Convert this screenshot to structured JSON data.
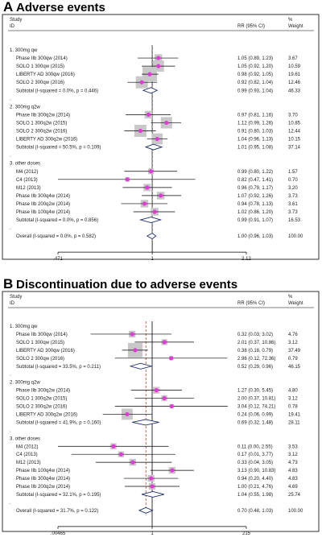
{
  "chart_data": [
    {
      "type": "forest",
      "panel_letter": "A",
      "title": "Adverse events",
      "col_study": "Study",
      "col_id": "ID",
      "col_rr": "RR (95% CI)",
      "col_pct": "%",
      "col_weight": "Weight",
      "x_ticks": [
        0.471,
        1,
        2.12
      ],
      "x_tick_labels": [
        ".471",
        "1",
        "2.12"
      ],
      "x_range": [
        0.471,
        2.12
      ],
      "log_scale": true,
      "overall_rr": 1.0,
      "rows": [
        {
          "kind": "group",
          "label": "1. 300mg qw"
        },
        {
          "kind": "study",
          "label": "Phase IIb 300qw (2014)",
          "rr": 1.05,
          "lo": 0.89,
          "hi": 1.23,
          "rr_text": "1.05 (0.89, 1.23)",
          "weight": 3.67,
          "weight_text": "3.67"
        },
        {
          "kind": "study",
          "label": "SOLO 1 300qw (2015)",
          "rr": 1.05,
          "lo": 0.92,
          "hi": 1.2,
          "rr_text": "1.05 (0.92, 1.20)",
          "weight": 10.59,
          "weight_text": "10.59"
        },
        {
          "kind": "study",
          "label": "LIBERTY AD 300qw (2016)",
          "rr": 0.98,
          "lo": 0.92,
          "hi": 1.05,
          "rr_text": "0.98 (0.92, 1.05)",
          "weight": 19.61,
          "weight_text": "19.61"
        },
        {
          "kind": "study",
          "label": "SOLO 2 300qw (2016)",
          "rr": 0.92,
          "lo": 0.82,
          "hi": 1.04,
          "rr_text": "0.92 (0.82, 1.04)",
          "weight": 12.46,
          "weight_text": "12.46"
        },
        {
          "kind": "subtotal",
          "label": "Subtotal  (I-squared = 0.0%, p = 0.446)",
          "rr": 0.99,
          "lo": 0.93,
          "hi": 1.04,
          "rr_text": "0.99 (0.93, 1.04)",
          "weight_text": "46.33"
        },
        {
          "kind": "dot",
          "label": "."
        },
        {
          "kind": "group",
          "label": "2. 300mg q2w"
        },
        {
          "kind": "study",
          "label": "Phase IIb 300q2w (2014)",
          "rr": 0.97,
          "lo": 0.81,
          "hi": 1.16,
          "rr_text": "0.97 (0.81, 1.16)",
          "weight": 3.7,
          "weight_text": "3.70"
        },
        {
          "kind": "study",
          "label": "SOLO 1 300q2w (2015)",
          "rr": 1.12,
          "lo": 0.99,
          "hi": 1.26,
          "rr_text": "1.12 (0.99, 1.26)",
          "weight": 10.85,
          "weight_text": "10.85"
        },
        {
          "kind": "study",
          "label": "SOLO 2 300q2w (2016)",
          "rr": 0.91,
          "lo": 0.8,
          "hi": 1.03,
          "rr_text": "0.91 (0.80, 1.03)",
          "weight": 12.44,
          "weight_text": "12.44"
        },
        {
          "kind": "study",
          "label": "LIBERTY AD 300q2w (2016)",
          "rr": 1.04,
          "lo": 0.96,
          "hi": 1.13,
          "rr_text": "1.04 (0.96, 1.13)",
          "weight": 10.15,
          "weight_text": "10.15"
        },
        {
          "kind": "subtotal",
          "label": "Subtotal  (I-squared = 50.5%, p = 0.109)",
          "rr": 1.01,
          "lo": 0.95,
          "hi": 1.08,
          "rr_text": "1.01 (0.95, 1.08)",
          "weight_text": "37.14"
        },
        {
          "kind": "dot",
          "label": "."
        },
        {
          "kind": "group",
          "label": "3. other doses"
        },
        {
          "kind": "study",
          "label": "M4 (2012)",
          "rr": 0.99,
          "lo": 0.8,
          "hi": 1.22,
          "rr_text": "0.99 (0.80, 1.22)",
          "weight": 1.57,
          "weight_text": "1.57"
        },
        {
          "kind": "study",
          "label": "C4 (2013)",
          "rr": 0.82,
          "lo": 0.47,
          "hi": 1.41,
          "rr_text": "0.82 (0.47, 1.41)",
          "weight": 0.7,
          "weight_text": "0.70"
        },
        {
          "kind": "study",
          "label": "M12 (2013)",
          "rr": 0.96,
          "lo": 0.79,
          "hi": 1.17,
          "rr_text": "0.96 (0.79, 1.17)",
          "weight": 3.2,
          "weight_text": "3.20"
        },
        {
          "kind": "study",
          "label": "Phase IIb 300q4w (2014)",
          "rr": 1.07,
          "lo": 0.92,
          "hi": 1.26,
          "rr_text": "1.07 (0.92, 1.26)",
          "weight": 3.73,
          "weight_text": "3.73"
        },
        {
          "kind": "study",
          "label": "Phase IIb 200q2w (2014)",
          "rr": 0.94,
          "lo": 0.78,
          "hi": 1.13,
          "rr_text": "0.94 (0.78, 1.13)",
          "weight": 3.61,
          "weight_text": "3.61"
        },
        {
          "kind": "study",
          "label": "Phase IIb 100q4w (2014)",
          "rr": 1.02,
          "lo": 0.86,
          "hi": 1.2,
          "rr_text": "1.02 (0.86, 1.20)",
          "weight": 3.73,
          "weight_text": "3.73"
        },
        {
          "kind": "subtotal",
          "label": "Subtotal  (I-squared = 0.0%, p = 0.856)",
          "rr": 0.99,
          "lo": 0.91,
          "hi": 1.07,
          "rr_text": "0.99 (0.91, 1.07)",
          "weight_text": "16.53"
        },
        {
          "kind": "dot",
          "label": "."
        },
        {
          "kind": "overall",
          "label": "Overall  (I-squared = 0.0%, p = 0.582)",
          "rr": 1.0,
          "lo": 0.96,
          "hi": 1.03,
          "rr_text": "1.00 (0.96, 1.03)",
          "weight_text": "100.00"
        }
      ]
    },
    {
      "type": "forest",
      "panel_letter": "B",
      "title": "Discontinuation due to adverse events",
      "col_study": "Study",
      "col_id": "ID",
      "col_rr": "RR (95% CI)",
      "col_pct": "%",
      "col_weight": "Weight",
      "x_ticks": [
        0.00465,
        1,
        215
      ],
      "x_tick_labels": [
        ".00465",
        "1",
        "215"
      ],
      "x_range": [
        0.00465,
        215
      ],
      "log_scale": true,
      "overall_rr": 0.7,
      "rows": [
        {
          "kind": "group",
          "label": "1. 300mg qw"
        },
        {
          "kind": "study",
          "label": "Phase IIb 300qw (2014)",
          "rr": 0.32,
          "lo": 0.03,
          "hi": 3.02,
          "rr_text": "0.32 (0.03, 3.02)",
          "weight": 4.76,
          "weight_text": "4.76"
        },
        {
          "kind": "study",
          "label": "SOLO 1 300qw (2015)",
          "rr": 2.01,
          "lo": 0.37,
          "hi": 10.86,
          "rr_text": "2.01 (0.37, 10.86)",
          "weight": 3.12,
          "weight_text": "3.12"
        },
        {
          "kind": "study",
          "label": "LIBERTY AD 300qw (2016)",
          "rr": 0.38,
          "lo": 0.18,
          "hi": 0.79,
          "rr_text": "0.38 (0.18, 0.79)",
          "weight": 37.49,
          "weight_text": "37.49"
        },
        {
          "kind": "study",
          "label": "SOLO 2 300qw (2016)",
          "rr": 2.96,
          "lo": 0.12,
          "hi": 72.36,
          "rr_text": "2.96 (0.12, 72.36)",
          "weight": 0.79,
          "weight_text": "0.79"
        },
        {
          "kind": "subtotal",
          "label": "Subtotal  (I-squared = 33.5%, p = 0.211)",
          "rr": 0.52,
          "lo": 0.29,
          "hi": 0.96,
          "rr_text": "0.52 (0.29, 0.96)",
          "weight_text": "46.15"
        },
        {
          "kind": "dot",
          "label": "."
        },
        {
          "kind": "group",
          "label": "2. 300mg q2w"
        },
        {
          "kind": "study",
          "label": "Phase IIb 300q2w (2014)",
          "rr": 1.27,
          "lo": 0.3,
          "hi": 5.45,
          "rr_text": "1.27 (0.30, 5.45)",
          "weight": 4.8,
          "weight_text": "4.80"
        },
        {
          "kind": "study",
          "label": "SOLO 1 300q2w (2015)",
          "rr": 2.0,
          "lo": 0.37,
          "hi": 10.81,
          "rr_text": "2.00 (0.37, 10.81)",
          "weight": 3.12,
          "weight_text": "3.12"
        },
        {
          "kind": "study",
          "label": "SOLO 2 300q2w (2016)",
          "rr": 3.04,
          "lo": 0.12,
          "hi": 74.21,
          "rr_text": "3.04 (0.12, 74.21)",
          "weight": 0.78,
          "weight_text": "0.78"
        },
        {
          "kind": "study",
          "label": "LIBERTY AD 300q2w (2016)",
          "rr": 0.24,
          "lo": 0.06,
          "hi": 0.99,
          "rr_text": "0.24 (0.06, 0.99)",
          "weight": 19.41,
          "weight_text": "19.41"
        },
        {
          "kind": "subtotal",
          "label": "Subtotal  (I-squared = 41.9%, p = 0.160)",
          "rr": 0.69,
          "lo": 0.32,
          "hi": 1.48,
          "rr_text": "0.69 (0.32, 1.48)",
          "weight_text": "28.11"
        },
        {
          "kind": "dot",
          "label": "."
        },
        {
          "kind": "group",
          "label": "3. other doses"
        },
        {
          "kind": "study",
          "label": "M4 (2012)",
          "rr": 0.11,
          "lo": 0.0,
          "hi": 2.55,
          "rr_text": "0.11 (0.00, 2.55)",
          "weight": 3.53,
          "weight_text": "3.53"
        },
        {
          "kind": "study",
          "label": "C4 (2013)",
          "rr": 0.17,
          "lo": 0.01,
          "hi": 3.77,
          "rr_text": "0.17 (0.01, 3.77)",
          "weight": 3.12,
          "weight_text": "3.12"
        },
        {
          "kind": "study",
          "label": "M12 (2013)",
          "rr": 0.33,
          "lo": 0.04,
          "hi": 3.05,
          "rr_text": "0.33 (0.04, 3.05)",
          "weight": 4.73,
          "weight_text": "4.73"
        },
        {
          "kind": "study",
          "label": "Phase IIb 100q4w (2014)",
          "rr": 3.13,
          "lo": 0.9,
          "hi": 10.83,
          "rr_text": "3.13 (0.90, 10.83)",
          "weight": 4.83,
          "weight_text": "4.83"
        },
        {
          "kind": "study",
          "label": "Phase IIb 300q4w (2014)",
          "rr": 0.94,
          "lo": 0.2,
          "hi": 4.4,
          "rr_text": "0.94 (0.20, 4.40)",
          "weight": 4.83,
          "weight_text": "4.83"
        },
        {
          "kind": "study",
          "label": "Phase IIb 200q2w (2014)",
          "rr": 1.0,
          "lo": 0.21,
          "hi": 4.76,
          "rr_text": "1.00 (0.21, 4.76)",
          "weight": 4.69,
          "weight_text": "4.69"
        },
        {
          "kind": "subtotal",
          "label": "Subtotal  (I-squared = 32.1%, p = 0.195)",
          "rr": 1.04,
          "lo": 0.55,
          "hi": 1.98,
          "rr_text": "1.04 (0.55, 1.98)",
          "weight_text": "25.74"
        },
        {
          "kind": "dot",
          "label": "."
        },
        {
          "kind": "overall",
          "label": "Overall  (I-squared = 31.7%, p = 0.122)",
          "rr": 0.7,
          "lo": 0.48,
          "hi": 1.03,
          "rr_text": "0.70 (0.48, 1.03)",
          "weight_text": "100.00"
        }
      ]
    }
  ]
}
